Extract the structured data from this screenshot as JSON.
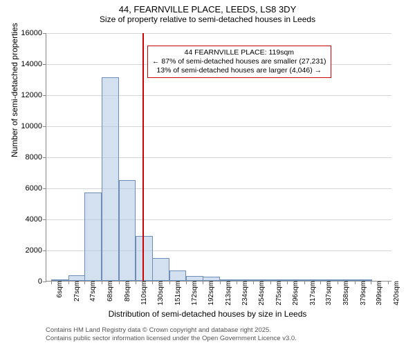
{
  "title": "44, FEARNVILLE PLACE, LEEDS, LS8 3DY",
  "subtitle": "Size of property relative to semi-detached houses in Leeds",
  "ylabel": "Number of semi-detached properties",
  "xlabel": "Distribution of semi-detached houses by size in Leeds",
  "chart": {
    "type": "histogram",
    "background_color": "#ffffff",
    "grid_color": "#d9d9d9",
    "axis_color": "#888888",
    "bar_fill": "rgba(173,198,227,0.55)",
    "bar_stroke": "#6b8db8",
    "marker_color": "#c00000",
    "font_family": "Arial",
    "title_fontsize": 13,
    "subtitle_fontsize": 12,
    "axis_label_fontsize": 12,
    "tick_fontsize": 11,
    "xtick_fontsize": 10,
    "annotation_fontsize": 10.5,
    "ylim": [
      0,
      16000
    ],
    "ytick_step": 2000,
    "yticks": [
      0,
      2000,
      4000,
      6000,
      8000,
      10000,
      12000,
      14000,
      16000
    ],
    "xlim": [
      0,
      425
    ],
    "xticks": [
      6,
      27,
      47,
      68,
      89,
      110,
      130,
      151,
      172,
      192,
      213,
      234,
      254,
      275,
      296,
      317,
      337,
      358,
      379,
      399,
      420
    ],
    "xtick_labels": [
      "6sqm",
      "27sqm",
      "47sqm",
      "68sqm",
      "89sqm",
      "110sqm",
      "130sqm",
      "151sqm",
      "172sqm",
      "192sqm",
      "213sqm",
      "234sqm",
      "254sqm",
      "275sqm",
      "296sqm",
      "317sqm",
      "337sqm",
      "358sqm",
      "379sqm",
      "399sqm",
      "420sqm"
    ],
    "bin_width": 21,
    "bins_start": [
      6,
      27,
      47,
      68,
      89,
      110,
      130,
      151,
      172,
      192,
      213,
      234,
      254,
      275,
      296,
      317,
      337,
      358,
      379,
      399
    ],
    "counts": [
      50,
      350,
      5700,
      13100,
      6500,
      2900,
      1450,
      650,
      300,
      250,
      100,
      60,
      30,
      10,
      5,
      3,
      2,
      1,
      1,
      0
    ],
    "marker_value": 119,
    "annotation": {
      "line1": "44 FEARNVILLE PLACE: 119sqm",
      "line2": "← 87% of semi-detached houses are smaller (27,231)",
      "line3": "13% of semi-detached houses are larger (4,046) →",
      "box_border_color": "#c00000",
      "box_background": "#ffffff"
    }
  },
  "credits": {
    "line1": "Contains HM Land Registry data © Crown copyright and database right 2025.",
    "line2": "Contains public sector information licensed under the Open Government Licence v3.0."
  }
}
